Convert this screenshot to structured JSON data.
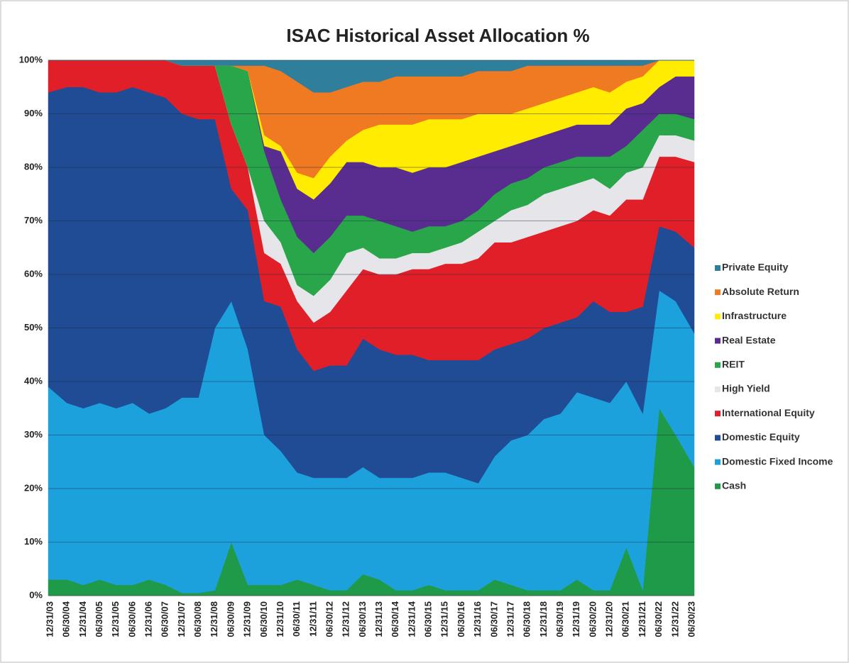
{
  "chart_data": {
    "type": "stacked_area",
    "title": "ISAC Historical Asset Allocation %",
    "categories": [
      "12/31/03",
      "06/30/04",
      "12/31/04",
      "06/30/05",
      "12/31/05",
      "06/30/06",
      "12/31/06",
      "06/30/07",
      "12/31/07",
      "06/30/08",
      "12/31/08",
      "06/30/09",
      "12/31/09",
      "06/30/10",
      "12/31/10",
      "06/30/11",
      "12/31/11",
      "06/30/12",
      "12/31/12",
      "06/30/13",
      "12/31/13",
      "06/30/14",
      "12/31/14",
      "06/30/15",
      "12/31/15",
      "06/30/16",
      "12/31/16",
      "06/30/17",
      "12/31/17",
      "06/30/18",
      "12/31/18",
      "06/30/19",
      "12/31/19",
      "06/30/20",
      "12/31/20",
      "06/30/21",
      "12/31/21",
      "06/30/22",
      "12/31/22",
      "06/30/23"
    ],
    "series": [
      {
        "name": "Cash",
        "color": "#1f9a48",
        "values": [
          3,
          3,
          2,
          3,
          2,
          2,
          3,
          2,
          0.5,
          0.5,
          1,
          10,
          2,
          2,
          2,
          3,
          2,
          1,
          1,
          4,
          3,
          1,
          1,
          2,
          1,
          1,
          1,
          3,
          2,
          1,
          1,
          1,
          3,
          1,
          1,
          9,
          1,
          35,
          30,
          24
        ]
      },
      {
        "name": "Domestic Fixed Income",
        "color": "#1da1dc",
        "values": [
          36,
          33,
          33,
          33,
          33,
          34,
          31,
          33,
          36.5,
          36.5,
          49,
          45,
          44,
          28,
          25,
          20,
          20,
          21,
          21,
          20,
          19,
          21,
          21,
          21,
          22,
          21,
          20,
          23,
          27,
          29,
          32,
          33,
          35,
          36,
          35,
          31,
          33,
          22,
          25,
          25
        ]
      },
      {
        "name": "Domestic Equity",
        "color": "#1f4c94",
        "values": [
          55,
          59,
          60,
          58,
          59,
          59,
          60,
          58,
          53,
          52,
          39,
          21,
          26,
          25,
          27,
          23,
          20,
          21,
          21,
          24,
          24,
          23,
          23,
          21,
          21,
          22,
          23,
          20,
          18,
          18,
          17,
          17,
          14,
          18,
          17,
          13,
          20,
          12,
          13,
          16
        ]
      },
      {
        "name": "International Equity",
        "color": "#e01f29",
        "values": [
          6,
          5,
          5,
          6,
          6,
          5,
          6,
          7,
          9,
          10,
          10,
          12,
          8,
          9,
          8,
          9,
          9,
          10,
          14,
          13,
          14,
          15,
          16,
          17,
          18,
          18,
          19,
          20,
          19,
          19,
          18,
          18,
          18,
          17,
          18,
          21,
          20,
          13,
          14,
          16
        ]
      },
      {
        "name": "High Yield",
        "color": "#e6e6ea",
        "values": [
          0,
          0,
          0,
          0,
          0,
          0,
          0,
          0,
          0,
          0,
          0,
          0,
          0,
          6,
          4,
          3,
          5,
          6,
          7,
          4,
          3,
          3,
          3,
          3,
          3,
          4,
          5,
          4,
          6,
          6,
          7,
          7,
          7,
          6,
          5,
          5,
          6,
          4,
          4,
          4
        ]
      },
      {
        "name": "REIT",
        "color": "#2aa64a",
        "values": [
          0,
          0,
          0,
          0,
          0,
          0,
          0,
          0,
          0,
          0,
          0,
          11,
          18,
          13,
          8,
          9,
          8,
          8,
          7,
          6,
          7,
          6,
          4,
          5,
          4,
          4,
          4,
          5,
          5,
          5,
          5,
          5,
          5,
          4,
          6,
          5,
          7,
          4,
          4,
          4
        ]
      },
      {
        "name": "Real Estate",
        "color": "#592d90",
        "values": [
          0,
          0,
          0,
          0,
          0,
          0,
          0,
          0,
          0,
          0,
          0,
          0,
          0,
          1,
          9,
          9,
          10,
          10,
          10,
          10,
          10,
          11,
          11,
          11,
          11,
          11,
          10,
          8,
          7,
          7,
          6,
          6,
          6,
          6,
          6,
          7,
          5,
          5,
          7,
          8
        ]
      },
      {
        "name": "Infrastructure",
        "color": "#ffec00",
        "values": [
          0,
          0,
          0,
          0,
          0,
          0,
          0,
          0,
          0,
          0,
          0,
          0,
          0,
          2,
          1,
          3,
          4,
          5,
          4,
          6,
          8,
          8,
          9,
          9,
          9,
          8,
          8,
          7,
          6,
          6,
          6,
          6,
          6,
          7,
          6,
          5,
          5,
          5,
          3,
          3
        ]
      },
      {
        "name": "Absolute Return",
        "color": "#f07a22",
        "values": [
          0,
          0,
          0,
          0,
          0,
          0,
          0,
          0,
          0,
          0,
          0,
          0,
          1,
          13,
          14,
          17,
          16,
          12,
          10,
          9,
          8,
          9,
          9,
          8,
          8,
          8,
          8,
          8,
          8,
          8,
          7,
          6,
          5,
          4,
          5,
          3,
          2,
          0,
          0,
          0
        ]
      },
      {
        "name": "Private Equity",
        "color": "#2f7f9c",
        "values": [
          0,
          0,
          0,
          0,
          0,
          0,
          0,
          0,
          1,
          1,
          1,
          1,
          1,
          1,
          2,
          4,
          6,
          6,
          5,
          4,
          4,
          3,
          3,
          3,
          3,
          3,
          2,
          2,
          2,
          1,
          1,
          1,
          1,
          1,
          1,
          1,
          1,
          0,
          0,
          0
        ]
      }
    ],
    "ylim": [
      0,
      100
    ],
    "yticks": [
      {
        "value": 0,
        "label": "0%"
      },
      {
        "value": 10,
        "label": "10%"
      },
      {
        "value": 20,
        "label": "20%"
      },
      {
        "value": 30,
        "label": "30%"
      },
      {
        "value": 40,
        "label": "40%"
      },
      {
        "value": 50,
        "label": "50%"
      },
      {
        "value": 60,
        "label": "60%"
      },
      {
        "value": 70,
        "label": "70%"
      },
      {
        "value": 80,
        "label": "80%"
      },
      {
        "value": 90,
        "label": "90%"
      },
      {
        "value": 100,
        "label": "100%"
      }
    ],
    "grid": true,
    "legend": "right"
  }
}
